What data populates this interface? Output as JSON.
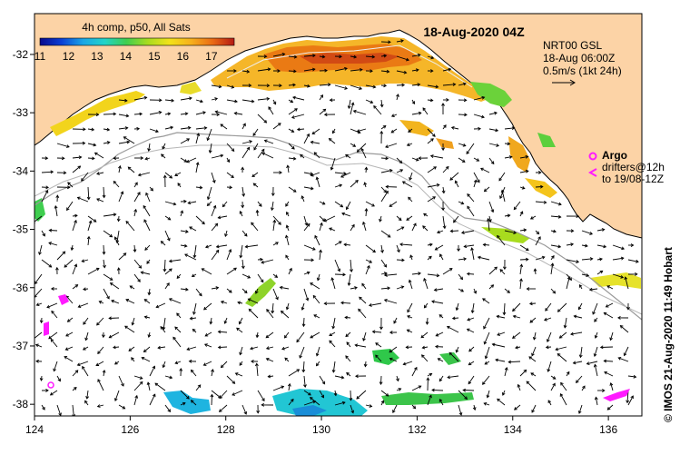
{
  "map": {
    "title": "18-Aug-2020 04Z",
    "colorbar": {
      "title": "4h comp, p50, All Sats",
      "ticks": [
        "11",
        "12",
        "13",
        "14",
        "15",
        "16",
        "17"
      ],
      "min": 11,
      "max": 17.8,
      "colors": [
        "#08088c",
        "#0a3fd6",
        "#1aa6e6",
        "#22d4c8",
        "#3fce4f",
        "#a8dc1e",
        "#f2e21a",
        "#f6b01c",
        "#ea6a14",
        "#b41a14"
      ]
    },
    "x_ticks": [
      "124",
      "126",
      "128",
      "130",
      "132",
      "134",
      "136"
    ],
    "y_ticks": [
      "-32",
      "-33",
      "-34",
      "-35",
      "-36",
      "-37",
      "-38"
    ],
    "lon_range": [
      124,
      136.7
    ],
    "lat_range": [
      -38.2,
      -31.3
    ],
    "legend": {
      "line1": "NRT00 GSL",
      "line2": "18-Aug 06:00Z",
      "line3": "0.5m/s (1kt 24h)"
    },
    "argo": {
      "title": "Argo",
      "line1": "drifters@12h",
      "line2": "to 19/08-12Z"
    },
    "credit": "© IMOS 21-Aug-2020 11:49 Hobart",
    "colors": {
      "land": "#fcd3a6",
      "ocean": "#ffffff",
      "arrow": "#000000",
      "contour": "#9a9a9a",
      "argo": "#ff1aff"
    }
  }
}
